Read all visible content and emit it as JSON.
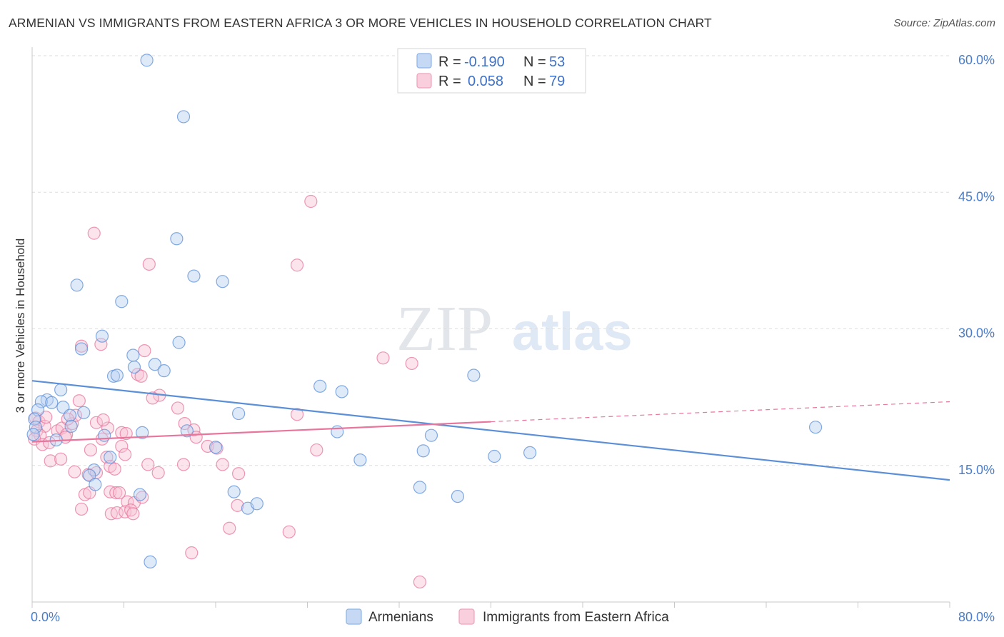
{
  "title": "ARMENIAN VS IMMIGRANTS FROM EASTERN AFRICA 3 OR MORE VEHICLES IN HOUSEHOLD CORRELATION CHART",
  "source": "Source: ZipAtlas.com",
  "watermark": {
    "zip": "ZIP",
    "atlas": "atlas"
  },
  "legend": {
    "r_label": "R =",
    "n_label": "N =",
    "rows": [
      {
        "r": "-0.190",
        "n": "53",
        "color": "#8db3ea",
        "fill": "#c5d9f5"
      },
      {
        "r": "0.058",
        "n": "79",
        "color": "#f0a0bd",
        "fill": "#f9cfde"
      }
    ]
  },
  "bottom_legend": [
    "Armenians",
    "Immigrants from Eastern Africa"
  ],
  "chart_data": {
    "type": "scatter",
    "xlabel": "",
    "ylabel": "3 or more Vehicles in Household",
    "xlim": [
      0,
      80
    ],
    "ylim": [
      0,
      60
    ],
    "x_tick_labels": [
      "0.0%",
      "80.0%"
    ],
    "y_ticks": [
      15,
      30,
      45,
      60
    ],
    "y_tick_labels": [
      "15.0%",
      "30.0%",
      "45.0%",
      "60.0%"
    ],
    "grid": true,
    "series": [
      {
        "name": "Armenians",
        "color": "#5b8fd8",
        "fill": "#b8d0f2",
        "trend": {
          "x0": 0,
          "y0": 24.3,
          "x1": 80,
          "y1": 13.4,
          "dashed_from": null
        },
        "points": [
          [
            10.0,
            59.5
          ],
          [
            13.2,
            53.3
          ],
          [
            12.6,
            39.9
          ],
          [
            14.1,
            35.8
          ],
          [
            16.6,
            35.2
          ],
          [
            3.9,
            34.8
          ],
          [
            7.8,
            33.0
          ],
          [
            6.1,
            29.2
          ],
          [
            12.8,
            28.5
          ],
          [
            4.3,
            27.8
          ],
          [
            8.8,
            27.1
          ],
          [
            10.7,
            26.1
          ],
          [
            8.9,
            25.8
          ],
          [
            11.5,
            25.4
          ],
          [
            7.1,
            24.8
          ],
          [
            7.4,
            24.9
          ],
          [
            2.5,
            23.3
          ],
          [
            1.3,
            22.2
          ],
          [
            0.8,
            22.0
          ],
          [
            1.7,
            21.9
          ],
          [
            0.5,
            21.1
          ],
          [
            2.7,
            21.4
          ],
          [
            4.5,
            20.8
          ],
          [
            3.3,
            20.5
          ],
          [
            3.4,
            19.3
          ],
          [
            0.2,
            20.1
          ],
          [
            0.3,
            19.2
          ],
          [
            0.1,
            18.4
          ],
          [
            2.1,
            17.8
          ],
          [
            9.6,
            18.6
          ],
          [
            6.3,
            18.3
          ],
          [
            13.5,
            18.8
          ],
          [
            18.0,
            20.7
          ],
          [
            25.1,
            23.7
          ],
          [
            27.0,
            23.1
          ],
          [
            26.6,
            18.7
          ],
          [
            34.8,
            18.3
          ],
          [
            38.5,
            24.9
          ],
          [
            16.0,
            17.0
          ],
          [
            28.6,
            15.6
          ],
          [
            34.1,
            16.6
          ],
          [
            40.3,
            16.0
          ],
          [
            43.4,
            16.4
          ],
          [
            6.8,
            15.9
          ],
          [
            5.4,
            14.5
          ],
          [
            5.0,
            13.9
          ],
          [
            5.5,
            12.9
          ],
          [
            9.4,
            11.8
          ],
          [
            17.6,
            12.1
          ],
          [
            18.8,
            10.3
          ],
          [
            19.6,
            10.8
          ],
          [
            33.8,
            12.6
          ],
          [
            37.1,
            11.6
          ],
          [
            68.3,
            19.2
          ],
          [
            10.3,
            4.4
          ]
        ]
      },
      {
        "name": "Immigrants from Eastern Africa",
        "color": "#e8769c",
        "fill": "#f7c3d5",
        "trend": {
          "x0": 0,
          "y0": 17.6,
          "x1": 80,
          "y1": 22.0,
          "dashed_from": 40
        },
        "points": [
          [
            24.3,
            44.0
          ],
          [
            5.4,
            40.5
          ],
          [
            10.2,
            37.1
          ],
          [
            23.1,
            37.0
          ],
          [
            6.0,
            28.3
          ],
          [
            4.3,
            28.1
          ],
          [
            9.8,
            27.6
          ],
          [
            30.6,
            26.8
          ],
          [
            33.1,
            26.2
          ],
          [
            9.2,
            25.0
          ],
          [
            9.5,
            24.8
          ],
          [
            11.1,
            22.7
          ],
          [
            10.5,
            22.4
          ],
          [
            4.1,
            22.1
          ],
          [
            0.3,
            20.2
          ],
          [
            0.6,
            19.8
          ],
          [
            1.1,
            19.3
          ],
          [
            0.4,
            18.8
          ],
          [
            0.7,
            18.3
          ],
          [
            0.2,
            17.9
          ],
          [
            0.9,
            17.3
          ],
          [
            1.5,
            17.5
          ],
          [
            2.2,
            18.8
          ],
          [
            2.6,
            19.1
          ],
          [
            3.0,
            18.4
          ],
          [
            3.5,
            19.6
          ],
          [
            3.8,
            20.5
          ],
          [
            2.9,
            18.1
          ],
          [
            5.6,
            19.7
          ],
          [
            6.6,
            19.1
          ],
          [
            6.1,
            17.9
          ],
          [
            7.8,
            18.6
          ],
          [
            12.7,
            21.3
          ],
          [
            13.3,
            19.6
          ],
          [
            14.1,
            18.9
          ],
          [
            14.3,
            18.1
          ],
          [
            23.1,
            20.6
          ],
          [
            15.3,
            17.1
          ],
          [
            16.6,
            15.1
          ],
          [
            18.0,
            14.1
          ],
          [
            24.8,
            16.7
          ],
          [
            1.6,
            15.5
          ],
          [
            2.5,
            15.7
          ],
          [
            5.1,
            16.7
          ],
          [
            6.5,
            15.9
          ],
          [
            7.8,
            17.1
          ],
          [
            8.1,
            16.2
          ],
          [
            6.8,
            14.9
          ],
          [
            7.2,
            14.6
          ],
          [
            10.1,
            15.1
          ],
          [
            13.2,
            15.1
          ],
          [
            3.7,
            14.3
          ],
          [
            4.9,
            14.0
          ],
          [
            5.6,
            14.2
          ],
          [
            4.6,
            11.8
          ],
          [
            5.0,
            12.0
          ],
          [
            6.8,
            12.1
          ],
          [
            7.3,
            12.0
          ],
          [
            7.6,
            12.0
          ],
          [
            8.3,
            11.0
          ],
          [
            8.9,
            10.9
          ],
          [
            9.6,
            11.5
          ],
          [
            4.3,
            10.2
          ],
          [
            6.9,
            9.7
          ],
          [
            7.4,
            9.8
          ],
          [
            8.1,
            9.9
          ],
          [
            8.6,
            10.1
          ],
          [
            8.8,
            9.7
          ],
          [
            17.9,
            10.6
          ],
          [
            17.2,
            8.1
          ],
          [
            22.4,
            7.7
          ],
          [
            13.9,
            5.4
          ],
          [
            33.8,
            2.2
          ],
          [
            16.1,
            16.9
          ],
          [
            11.0,
            14.2
          ],
          [
            3.1,
            20.1
          ],
          [
            1.2,
            20.3
          ],
          [
            8.2,
            18.5
          ],
          [
            6.2,
            20.0
          ]
        ]
      }
    ]
  }
}
